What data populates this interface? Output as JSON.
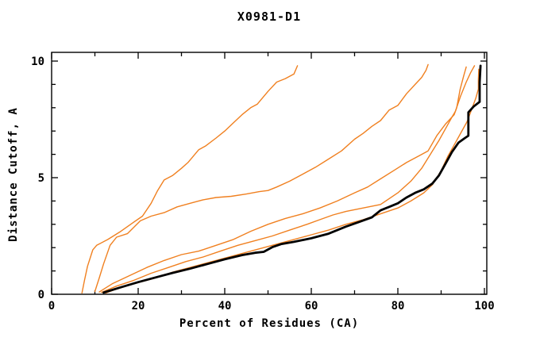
{
  "title": "X0981-D1",
  "chart_data": {
    "type": "line",
    "title": "X0981-D1",
    "xlabel": "Percent of Residues (CA)",
    "ylabel": "Distance Cutoff, A",
    "xlim": [
      0,
      100.6
    ],
    "ylim": [
      0,
      10.37
    ],
    "x_major_ticks": [
      0,
      20,
      40,
      60,
      80,
      100
    ],
    "x_minor_ticks": [
      10,
      30,
      50,
      70,
      90
    ],
    "y_major_ticks": [
      0,
      5,
      10
    ],
    "y_minor_ticks": [
      1,
      2,
      3,
      4,
      6,
      7,
      8,
      9
    ],
    "grid": false,
    "legend": "none",
    "colors": {
      "model": "#F08020",
      "highlight": "#000000"
    },
    "series": [
      {
        "name": "orange-model-1",
        "color": "#F08020",
        "width": 1.4,
        "points": [
          [
            7,
            0.05
          ],
          [
            7.6,
            0.6
          ],
          [
            8.3,
            1.2
          ],
          [
            9.5,
            1.9
          ],
          [
            10.4,
            2.1
          ],
          [
            13,
            2.35
          ],
          [
            16,
            2.7
          ],
          [
            19,
            3.1
          ],
          [
            21,
            3.35
          ],
          [
            23,
            3.9
          ],
          [
            24.5,
            4.45
          ],
          [
            26,
            4.9
          ],
          [
            28,
            5.1
          ],
          [
            30,
            5.4
          ],
          [
            31.5,
            5.65
          ],
          [
            34,
            6.2
          ],
          [
            35.5,
            6.35
          ],
          [
            38,
            6.7
          ],
          [
            40,
            7.0
          ],
          [
            42,
            7.35
          ],
          [
            44,
            7.7
          ],
          [
            46,
            8.0
          ],
          [
            47.5,
            8.15
          ],
          [
            50,
            8.7
          ],
          [
            52,
            9.1
          ],
          [
            54,
            9.25
          ],
          [
            56,
            9.45
          ],
          [
            56.8,
            9.8
          ]
        ]
      },
      {
        "name": "orange-model-2",
        "color": "#F08020",
        "width": 1.4,
        "points": [
          [
            10,
            0.12
          ],
          [
            11,
            0.7
          ],
          [
            12,
            1.3
          ],
          [
            13.5,
            2.1
          ],
          [
            15,
            2.45
          ],
          [
            17.5,
            2.6
          ],
          [
            20.5,
            3.15
          ],
          [
            23,
            3.35
          ],
          [
            26,
            3.5
          ],
          [
            29,
            3.75
          ],
          [
            32,
            3.9
          ],
          [
            35,
            4.05
          ],
          [
            38,
            4.15
          ],
          [
            41.5,
            4.2
          ],
          [
            45,
            4.3
          ],
          [
            48,
            4.4
          ],
          [
            50,
            4.45
          ],
          [
            52,
            4.6
          ],
          [
            55,
            4.85
          ],
          [
            58,
            5.15
          ],
          [
            61,
            5.45
          ],
          [
            64,
            5.8
          ],
          [
            67,
            6.15
          ],
          [
            70,
            6.65
          ],
          [
            72,
            6.9
          ],
          [
            74,
            7.2
          ],
          [
            76,
            7.45
          ],
          [
            78,
            7.9
          ],
          [
            80,
            8.1
          ],
          [
            82,
            8.6
          ],
          [
            84,
            9.0
          ],
          [
            85.5,
            9.3
          ],
          [
            86.5,
            9.6
          ],
          [
            87,
            9.85
          ]
        ]
      },
      {
        "name": "orange-model-3",
        "color": "#F08020",
        "width": 1.4,
        "points": [
          [
            11,
            0.1
          ],
          [
            14,
            0.45
          ],
          [
            18,
            0.8
          ],
          [
            22,
            1.15
          ],
          [
            26,
            1.45
          ],
          [
            30,
            1.7
          ],
          [
            34,
            1.85
          ],
          [
            38,
            2.1
          ],
          [
            42,
            2.35
          ],
          [
            46,
            2.7
          ],
          [
            50,
            3.0
          ],
          [
            54,
            3.25
          ],
          [
            58,
            3.45
          ],
          [
            62,
            3.7
          ],
          [
            66,
            4.0
          ],
          [
            70,
            4.35
          ],
          [
            73,
            4.6
          ],
          [
            76,
            4.95
          ],
          [
            79,
            5.3
          ],
          [
            82,
            5.65
          ],
          [
            85,
            5.95
          ],
          [
            87,
            6.15
          ],
          [
            89,
            6.8
          ],
          [
            91,
            7.3
          ],
          [
            93,
            7.7
          ],
          [
            93.6,
            8.0
          ],
          [
            94.4,
            8.8
          ],
          [
            95.2,
            9.35
          ],
          [
            95.8,
            9.75
          ]
        ]
      },
      {
        "name": "orange-model-4",
        "color": "#F08020",
        "width": 1.4,
        "points": [
          [
            11.5,
            0.08
          ],
          [
            15,
            0.35
          ],
          [
            19,
            0.6
          ],
          [
            23,
            0.9
          ],
          [
            27,
            1.15
          ],
          [
            31,
            1.4
          ],
          [
            35,
            1.6
          ],
          [
            39,
            1.85
          ],
          [
            43,
            2.1
          ],
          [
            47,
            2.3
          ],
          [
            51,
            2.5
          ],
          [
            55,
            2.75
          ],
          [
            59,
            3.0
          ],
          [
            62,
            3.2
          ],
          [
            65,
            3.4
          ],
          [
            68,
            3.55
          ],
          [
            72,
            3.7
          ],
          [
            76,
            3.85
          ],
          [
            80,
            4.35
          ],
          [
            83,
            4.85
          ],
          [
            85.5,
            5.4
          ],
          [
            87.5,
            6.0
          ],
          [
            89.5,
            6.6
          ],
          [
            91,
            7.1
          ],
          [
            92.5,
            7.6
          ],
          [
            93.3,
            7.85
          ],
          [
            94.5,
            8.5
          ],
          [
            95.8,
            9.1
          ],
          [
            96.8,
            9.5
          ],
          [
            97.7,
            9.8
          ]
        ]
      },
      {
        "name": "orange-model-5",
        "color": "#F08020",
        "width": 1.4,
        "points": [
          [
            12.5,
            0.05
          ],
          [
            16,
            0.3
          ],
          [
            20,
            0.5
          ],
          [
            24,
            0.7
          ],
          [
            28,
            0.95
          ],
          [
            32,
            1.15
          ],
          [
            36,
            1.35
          ],
          [
            40,
            1.55
          ],
          [
            44,
            1.75
          ],
          [
            48,
            1.95
          ],
          [
            52,
            2.15
          ],
          [
            56,
            2.35
          ],
          [
            60,
            2.55
          ],
          [
            64,
            2.75
          ],
          [
            68,
            3.0
          ],
          [
            72,
            3.2
          ],
          [
            76,
            3.45
          ],
          [
            80,
            3.7
          ],
          [
            83,
            4.0
          ],
          [
            86,
            4.35
          ],
          [
            88,
            4.7
          ],
          [
            90,
            5.3
          ],
          [
            91.5,
            5.9
          ],
          [
            93,
            6.4
          ],
          [
            94.5,
            6.9
          ],
          [
            96,
            7.4
          ],
          [
            97,
            7.9
          ],
          [
            98,
            8.4
          ],
          [
            98.6,
            8.8
          ],
          [
            98.6,
            9.2
          ],
          [
            98.7,
            9.65
          ]
        ]
      },
      {
        "name": "black-highlight-model",
        "color": "#000000",
        "width": 2.8,
        "points": [
          [
            12,
            0.07
          ],
          [
            16,
            0.3
          ],
          [
            20,
            0.52
          ],
          [
            24,
            0.72
          ],
          [
            28,
            0.92
          ],
          [
            32,
            1.1
          ],
          [
            36,
            1.3
          ],
          [
            40,
            1.5
          ],
          [
            44,
            1.68
          ],
          [
            47,
            1.78
          ],
          [
            49,
            1.82
          ],
          [
            51,
            2.02
          ],
          [
            53,
            2.15
          ],
          [
            56,
            2.25
          ],
          [
            60,
            2.4
          ],
          [
            64,
            2.6
          ],
          [
            68,
            2.9
          ],
          [
            71,
            3.1
          ],
          [
            74,
            3.3
          ],
          [
            76,
            3.6
          ],
          [
            78,
            3.75
          ],
          [
            80,
            3.9
          ],
          [
            82,
            4.15
          ],
          [
            84,
            4.35
          ],
          [
            86,
            4.5
          ],
          [
            88,
            4.75
          ],
          [
            89.5,
            5.1
          ],
          [
            91,
            5.6
          ],
          [
            92.5,
            6.1
          ],
          [
            94,
            6.5
          ],
          [
            95.5,
            6.7
          ],
          [
            96.3,
            6.8
          ],
          [
            96.3,
            7.8
          ],
          [
            97.5,
            8.05
          ],
          [
            98.9,
            8.25
          ],
          [
            98.9,
            9.1
          ],
          [
            99.1,
            9.8
          ]
        ]
      }
    ]
  }
}
